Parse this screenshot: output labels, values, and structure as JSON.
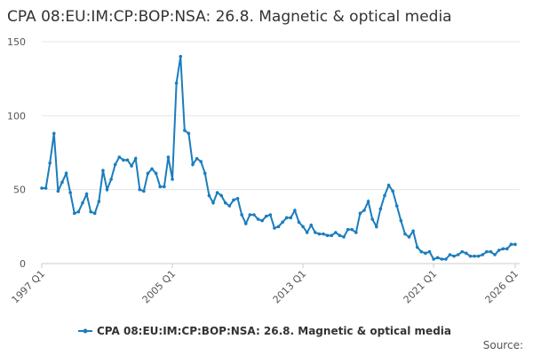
{
  "chart_data": {
    "type": "line",
    "title": "CPA 08:EU:IM:CP:BOP:NSA: 26.8. Magnetic & optical media",
    "source": "Source:",
    "categories": [
      "1997 Q1",
      null,
      null,
      null,
      null,
      null,
      null,
      null,
      null,
      null,
      null,
      null,
      null,
      null,
      null,
      null,
      null,
      null,
      null,
      null,
      null,
      null,
      null,
      null,
      null,
      null,
      null,
      null,
      null,
      null,
      null,
      null,
      "2005 Q1",
      null,
      null,
      null,
      null,
      null,
      null,
      null,
      null,
      null,
      null,
      null,
      null,
      null,
      null,
      null,
      null,
      null,
      null,
      null,
      null,
      null,
      null,
      null,
      null,
      null,
      null,
      null,
      null,
      null,
      null,
      null,
      "2013 Q1",
      null,
      null,
      null,
      null,
      null,
      null,
      null,
      null,
      null,
      null,
      null,
      null,
      null,
      null,
      null,
      null,
      null,
      null,
      null,
      null,
      null,
      null,
      null,
      null,
      null,
      null,
      null,
      null,
      null,
      null,
      null,
      "2021 Q1",
      null,
      null,
      null,
      null,
      null,
      null,
      null,
      null,
      null,
      null,
      null,
      null,
      null,
      null,
      null,
      null,
      null,
      null,
      null,
      "2026 Q1"
    ],
    "series": [
      {
        "name": "CPA 08:EU:IM:CP:BOP:NSA: 26.8. Magnetic & optical media",
        "color": "#1b7dbd",
        "values": [
          51,
          51,
          68,
          88,
          49,
          55,
          61,
          48,
          34,
          35,
          41,
          47,
          35,
          34,
          42,
          63,
          50,
          57,
          67,
          72,
          70,
          70,
          66,
          71,
          50,
          49,
          61,
          64,
          61,
          52,
          52,
          72,
          57,
          122,
          140,
          90,
          88,
          67,
          71,
          69,
          61,
          46,
          41,
          48,
          46,
          41,
          39,
          43,
          44,
          33,
          27,
          33,
          33,
          30,
          29,
          32,
          33,
          24,
          25,
          28,
          31,
          31,
          36,
          28,
          25,
          21,
          26,
          21,
          20,
          20,
          19,
          19,
          21,
          19,
          18,
          23,
          23,
          21,
          34,
          36,
          42,
          30,
          25,
          37,
          46,
          53,
          49,
          39,
          29,
          20,
          18,
          22,
          11,
          8,
          7,
          8,
          3,
          4,
          3,
          3,
          6,
          5,
          6,
          8,
          7,
          5,
          5,
          5,
          6,
          8,
          8,
          6,
          9,
          10,
          10,
          13,
          13
        ]
      }
    ],
    "ylim": [
      0,
      150
    ],
    "yticks": [
      0,
      50,
      100,
      150
    ],
    "grid": true
  }
}
